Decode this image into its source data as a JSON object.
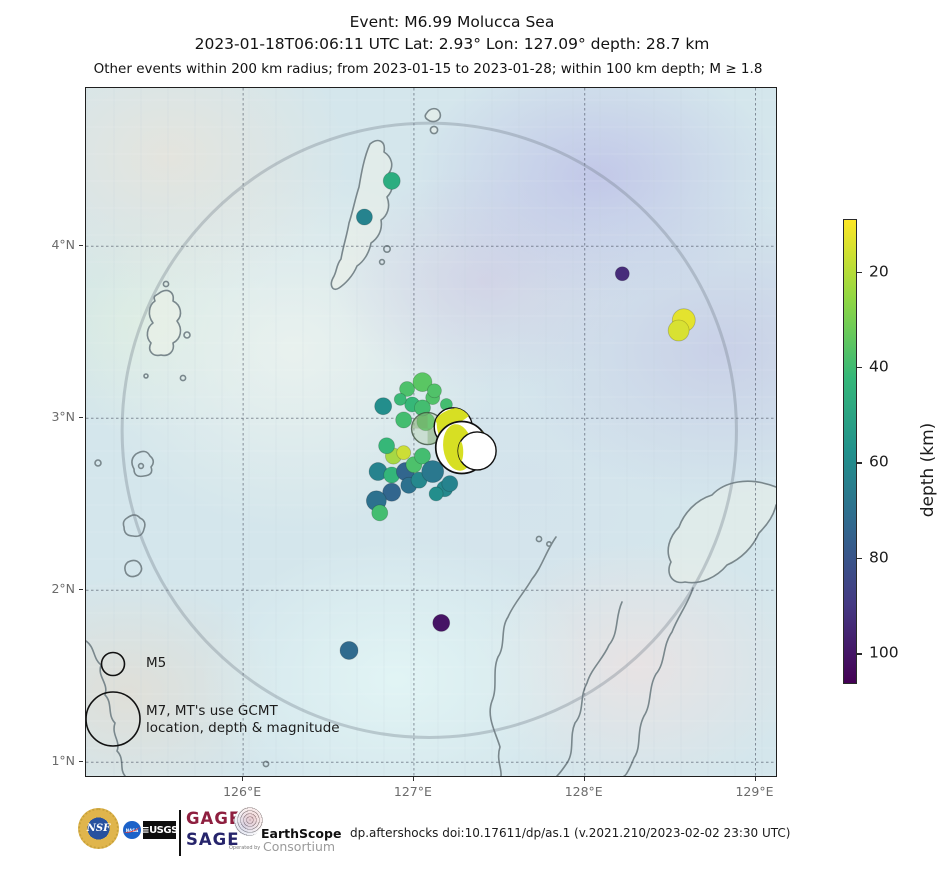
{
  "title": {
    "line1": "Event: M6.99 Molucca Sea",
    "line2": "2023-01-18T06:06:11 UTC Lat: 2.93° Lon: 127.09° depth: 28.7 km",
    "line3": "Other events within 200 km radius; from 2023-01-15 to 2023-01-28; within 100 km depth; M ≥ 1.8"
  },
  "legend": {
    "m5_label": "M5",
    "m7_label_line1": "M7, MT's use GCMT",
    "m7_label_line2": "location, depth & magnitude"
  },
  "colorbar": {
    "label": "depth (km)",
    "tick_values": [
      20,
      40,
      60,
      80,
      100
    ],
    "depth_min": 9,
    "depth_max": 106,
    "colormap": "viridis reversed (yellow = shallow, purple = deep)"
  },
  "footer": {
    "nsf": "NSF",
    "nasa": "NASA",
    "usgs": "≡USGS",
    "gage": "GAGE",
    "sage": "SAGE",
    "operated_by": "Operated by",
    "earthscope": "EarthScope",
    "consortium": "Consortium",
    "doi": "dp.aftershocks doi:10.17611/dp/as.1 (v.2021.210/2023-02-02 23:30 UTC)"
  },
  "chart_data": {
    "type": "scatter",
    "title": "Event: M6.99 Molucca Sea aftershocks map",
    "axes": {
      "lon_min": 125.08,
      "lon_max": 129.12,
      "lat_min": 0.92,
      "lat_max": 4.92,
      "lon_ticks": [
        126,
        127,
        128,
        129
      ],
      "lon_tick_labels": [
        "126°E",
        "127°E",
        "128°E",
        "129°E"
      ],
      "lat_ticks": [
        4,
        3,
        2,
        1
      ],
      "lat_tick_labels": [
        "4°N",
        "3°N",
        "2°N",
        "1°N"
      ],
      "grid": "dashed"
    },
    "mainshock": {
      "lon": 127.09,
      "lat": 2.93,
      "depth_km": 28.7,
      "magnitude": 6.99,
      "radius_km": 200
    },
    "colorbar_label": "depth (km)",
    "points": [
      {
        "lon": 126.87,
        "lat": 4.38,
        "depth": 38,
        "r": 8.5
      },
      {
        "lon": 126.71,
        "lat": 4.17,
        "depth": 57,
        "r": 8
      },
      {
        "lon": 128.22,
        "lat": 3.84,
        "depth": 92,
        "r": 7
      },
      {
        "lon": 128.58,
        "lat": 3.57,
        "depth": 11,
        "r": 11.5
      },
      {
        "lon": 128.55,
        "lat": 3.51,
        "depth": 12,
        "r": 10.5
      },
      {
        "lon": 127.16,
        "lat": 1.81,
        "depth": 100,
        "r": 8.5
      },
      {
        "lon": 126.62,
        "lat": 1.65,
        "depth": 68,
        "r": 9
      },
      {
        "lon": 126.82,
        "lat": 3.07,
        "depth": 52,
        "r": 8.5
      },
      {
        "lon": 126.96,
        "lat": 3.17,
        "depth": 28,
        "r": 7.5
      },
      {
        "lon": 127.05,
        "lat": 3.21,
        "depth": 25,
        "r": 9.5
      },
      {
        "lon": 127.11,
        "lat": 3.12,
        "depth": 27,
        "r": 7
      },
      {
        "lon": 126.99,
        "lat": 3.08,
        "depth": 33,
        "r": 7.5
      },
      {
        "lon": 126.94,
        "lat": 2.99,
        "depth": 30,
        "r": 8
      },
      {
        "lon": 127.07,
        "lat": 2.98,
        "depth": 26,
        "r": 9
      },
      {
        "lon": 127.12,
        "lat": 3.16,
        "depth": 27,
        "r": 7
      },
      {
        "lon": 126.92,
        "lat": 3.11,
        "depth": 32,
        "r": 6
      },
      {
        "lon": 127.05,
        "lat": 3.06,
        "depth": 30,
        "r": 8
      },
      {
        "lon": 127.19,
        "lat": 3.08,
        "depth": 30,
        "r": 6
      },
      {
        "lon": 126.88,
        "lat": 2.78,
        "depth": 16,
        "r": 8
      },
      {
        "lon": 126.94,
        "lat": 2.8,
        "depth": 13,
        "r": 7
      },
      {
        "lon": 126.84,
        "lat": 2.84,
        "depth": 33,
        "r": 8
      },
      {
        "lon": 126.79,
        "lat": 2.69,
        "depth": 57,
        "r": 9
      },
      {
        "lon": 126.87,
        "lat": 2.67,
        "depth": 34,
        "r": 8
      },
      {
        "lon": 126.95,
        "lat": 2.69,
        "depth": 70,
        "r": 9
      },
      {
        "lon": 126.97,
        "lat": 2.61,
        "depth": 65,
        "r": 8
      },
      {
        "lon": 127.03,
        "lat": 2.64,
        "depth": 55,
        "r": 8
      },
      {
        "lon": 127.0,
        "lat": 2.73,
        "depth": 28,
        "r": 8
      },
      {
        "lon": 127.05,
        "lat": 2.78,
        "depth": 30,
        "r": 8
      },
      {
        "lon": 127.11,
        "lat": 2.69,
        "depth": 62,
        "r": 11
      },
      {
        "lon": 127.18,
        "lat": 2.59,
        "depth": 55,
        "r": 8
      },
      {
        "lon": 126.87,
        "lat": 2.57,
        "depth": 70,
        "r": 9
      },
      {
        "lon": 126.78,
        "lat": 2.52,
        "depth": 65,
        "r": 10
      },
      {
        "lon": 126.8,
        "lat": 2.45,
        "depth": 30,
        "r": 8
      },
      {
        "lon": 127.21,
        "lat": 2.62,
        "depth": 57,
        "r": 8
      },
      {
        "lon": 127.13,
        "lat": 2.56,
        "depth": 52,
        "r": 7
      }
    ],
    "moment_tensors": [
      {
        "lon": 127.08,
        "lat": 2.94,
        "r": 16,
        "variant": "ghost"
      },
      {
        "lon": 127.23,
        "lat": 2.95,
        "r": 19,
        "variant": "wedge"
      },
      {
        "lon": 127.28,
        "lat": 2.83,
        "r": 26,
        "variant": "lens"
      },
      {
        "lon": 127.37,
        "lat": 2.81,
        "r": 19,
        "variant": "plain"
      }
    ],
    "marker_color_hex": {
      "shallow_yellow": "#e8e419",
      "mid_green": "#35b779",
      "teal": "#26828e",
      "deep_purple": "#440154"
    }
  }
}
